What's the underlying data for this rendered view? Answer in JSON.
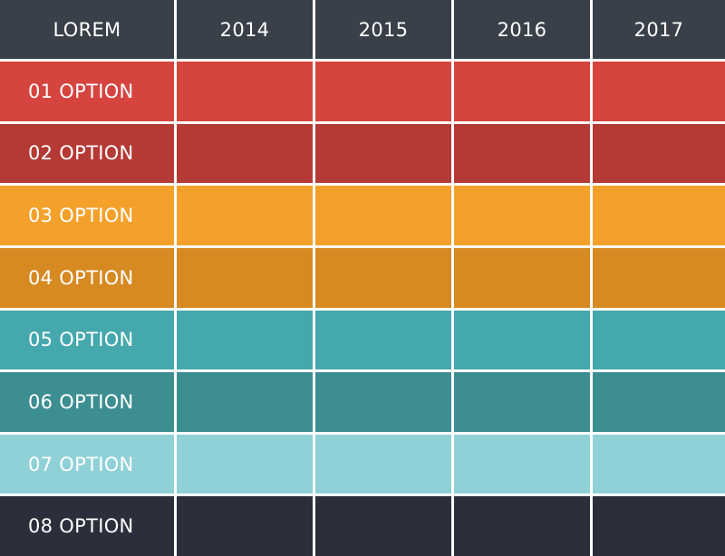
{
  "table": {
    "header": [
      "LOREM",
      "2014",
      "2015",
      "2016",
      "2017"
    ],
    "rows": [
      "01 OPTION",
      "02 OPTION",
      "03 OPTION",
      "04 OPTION",
      "05 OPTION",
      "06 OPTION",
      "07 OPTION",
      "08 OPTION"
    ]
  }
}
